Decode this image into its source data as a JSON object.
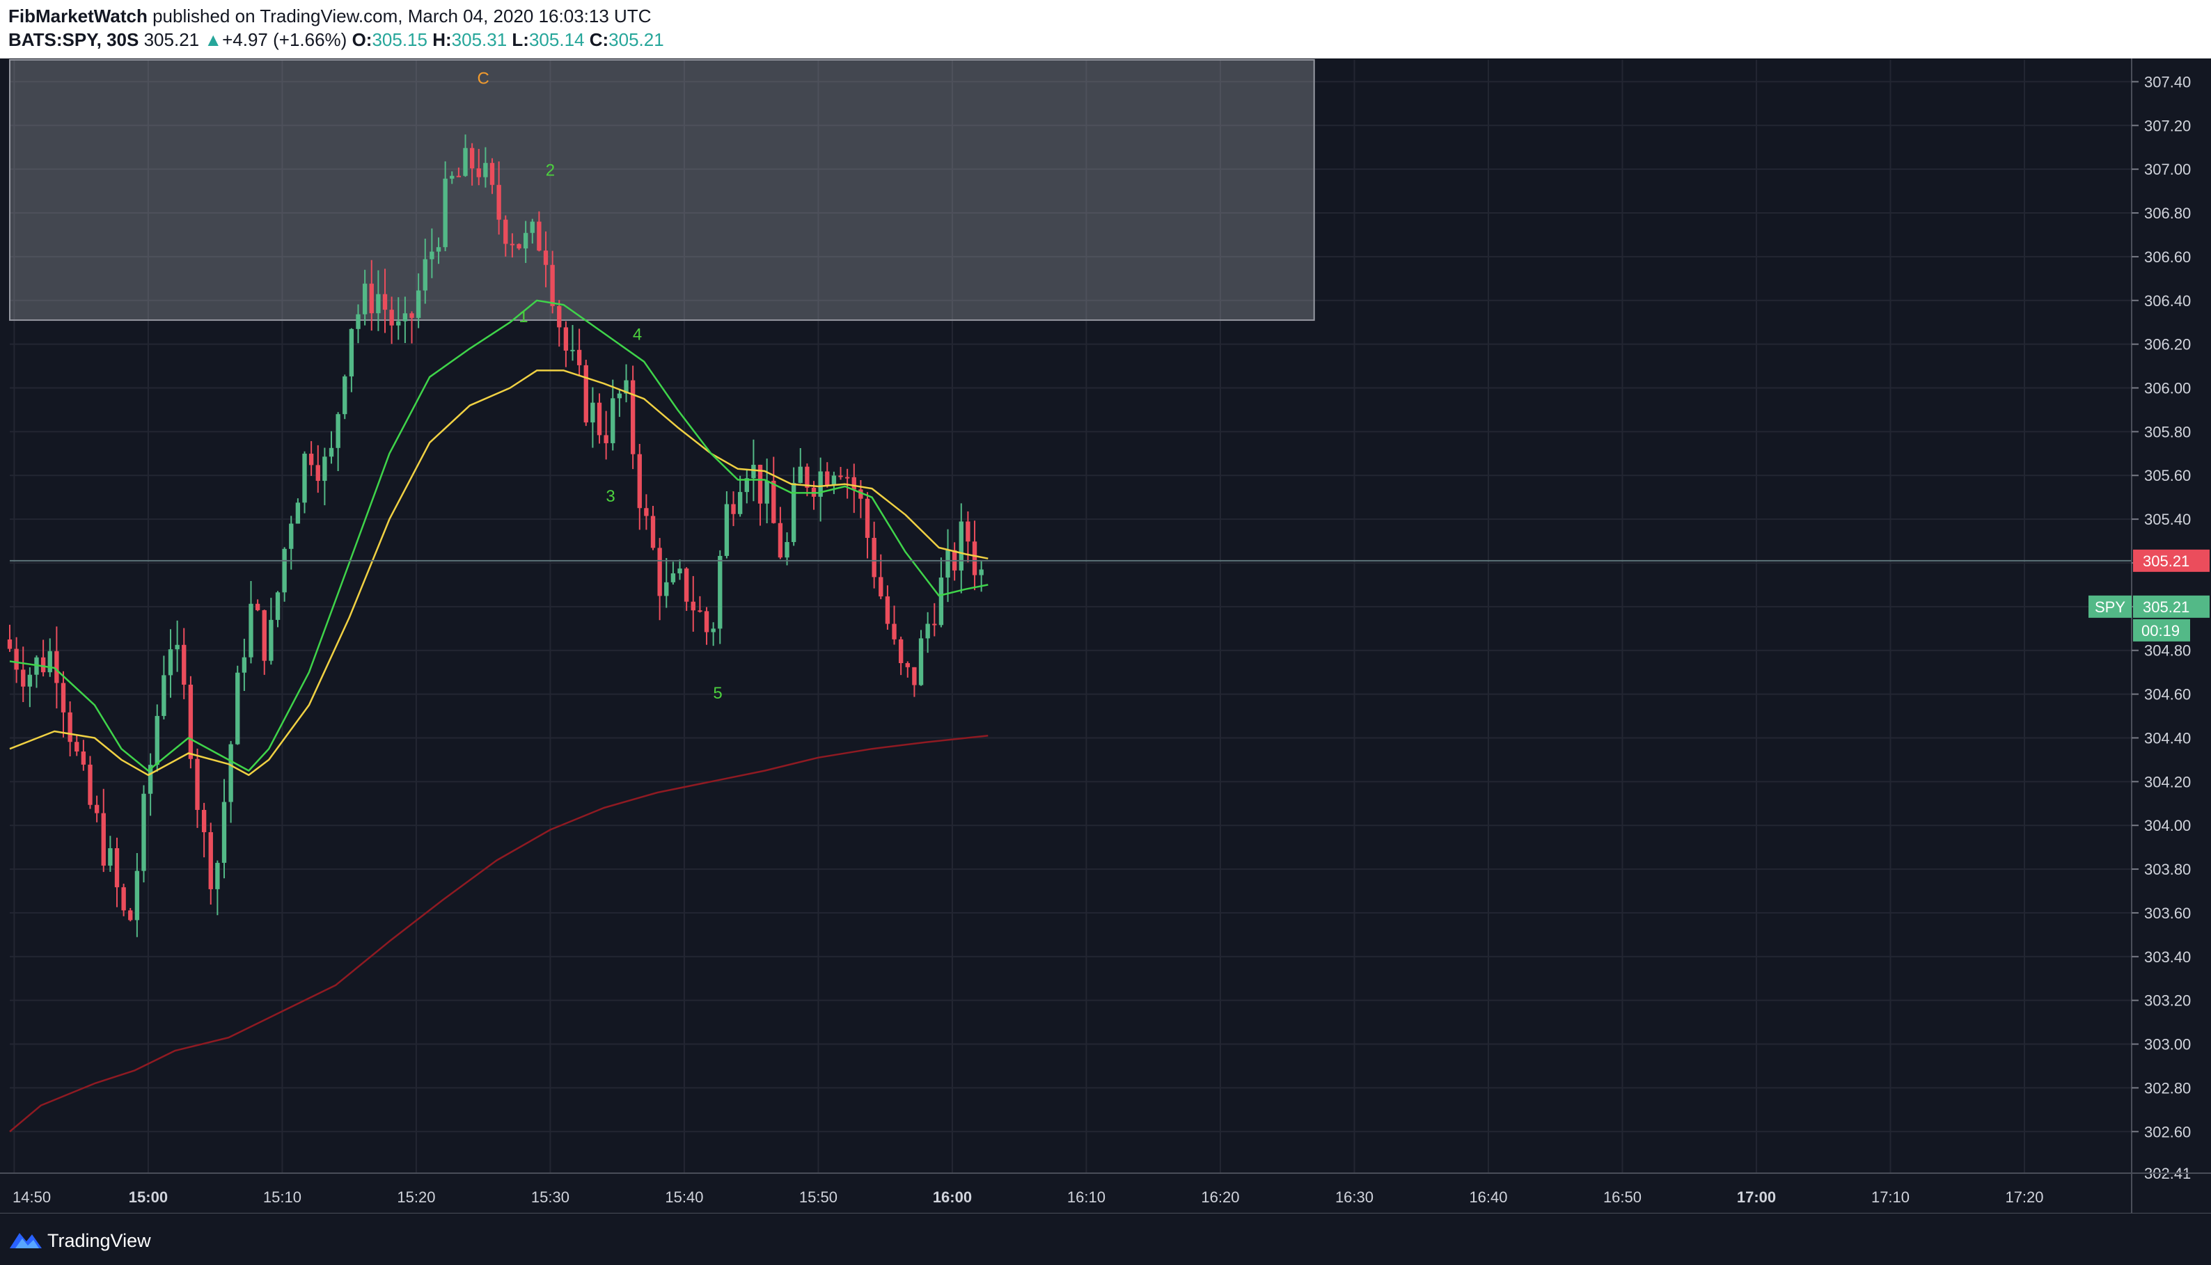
{
  "header": {
    "author": "FibMarketWatch",
    "published_text": " published on TradingView.com, March 04, 2020 16:03:13 UTC",
    "symbol": "BATS:SPY, 30S",
    "last": "305.21",
    "change_arrow": "▲",
    "change": "+4.97 (+1.66%)",
    "open_label": "O:",
    "open": "305.15",
    "high_label": "H:",
    "high": "305.31",
    "low_label": "L:",
    "low": "305.14",
    "close_label": "C:",
    "close": "305.21"
  },
  "footer": {
    "brand": "TradingView"
  },
  "colors": {
    "background": "#131722",
    "grid": "#232632",
    "up": "#53b987",
    "down": "#eb4d5c",
    "ema_fast": "#3fd44a",
    "ema_slow": "#f0d143",
    "ma_long": "#8f1a22",
    "wave_c": "#f29b2e",
    "wave_num": "#4cd13e"
  },
  "chart_data": {
    "type": "candlestick",
    "symbol": "SPY",
    "interval": "30S",
    "y_axis_ticks": [
      "307.40",
      "307.20",
      "307.00",
      "306.80",
      "306.60",
      "306.40",
      "306.20",
      "306.00",
      "305.80",
      "305.60",
      "305.40",
      "305.20",
      "305.00",
      "304.80",
      "304.60",
      "304.40",
      "304.20",
      "304.00",
      "303.80",
      "303.60",
      "303.40",
      "303.20",
      "303.00",
      "302.80",
      "302.60",
      "302.41"
    ],
    "ylim": [
      302.41,
      307.5
    ],
    "x_axis_ticks": [
      "14:50",
      "15:00",
      "15:10",
      "15:20",
      "15:30",
      "15:40",
      "15:50",
      "16:00",
      "16:10",
      "16:20",
      "16:30",
      "16:40",
      "16:50",
      "17:00",
      "17:10",
      "17:20"
    ],
    "x_axis_bold": [
      "15:00",
      "16:00",
      "17:00"
    ],
    "xlim": [
      "14:49:40",
      "17:28:00"
    ],
    "last_price": "305.21",
    "last_price_value": 305.21,
    "current_price_value": 305.0,
    "price_label_series": "SPY",
    "price_label_value": "305.21",
    "countdown": "00:19",
    "zone": {
      "x_start": "14:49:40",
      "x_end": "16:27:00",
      "y_low": 306.31,
      "y_high": 307.5
    },
    "wave_labels": [
      {
        "text": "C",
        "time": "15:25:00",
        "price": 307.39,
        "color": "wave_c"
      },
      {
        "text": "2",
        "time": "15:30:00",
        "price": 306.97,
        "color": "wave_num"
      },
      {
        "text": "1",
        "time": "15:28:00",
        "price": 306.3,
        "color": "wave_num"
      },
      {
        "text": "4",
        "time": "15:36:30",
        "price": 306.22,
        "color": "wave_num"
      },
      {
        "text": "3",
        "time": "15:34:30",
        "price": 305.48,
        "color": "wave_num"
      },
      {
        "text": "5",
        "time": "15:42:30",
        "price": 304.58,
        "color": "wave_num"
      }
    ],
    "anchors": [
      [
        "14:49:40",
        304.85
      ],
      [
        "14:51:30",
        304.7
      ],
      [
        "14:53:30",
        304.8
      ],
      [
        "14:55:30",
        304.2
      ],
      [
        "14:57:30",
        303.85
      ],
      [
        "14:59:00",
        303.5
      ],
      [
        "15:00:30",
        304.2
      ],
      [
        "15:02:00",
        304.9
      ],
      [
        "15:03:30",
        304.5
      ],
      [
        "15:04:30",
        303.95
      ],
      [
        "15:05:30",
        303.75
      ],
      [
        "15:06:30",
        304.3
      ],
      [
        "15:08:00",
        305.0
      ],
      [
        "15:09:30",
        304.8
      ],
      [
        "15:11:00",
        305.4
      ],
      [
        "15:12:30",
        305.75
      ],
      [
        "15:14:00",
        305.6
      ],
      [
        "15:15:30",
        306.3
      ],
      [
        "15:17:30",
        306.45
      ],
      [
        "15:19:30",
        306.2
      ],
      [
        "15:21:30",
        306.6
      ],
      [
        "15:23:00",
        306.92
      ],
      [
        "15:25:00",
        307.05
      ],
      [
        "15:26:30",
        306.8
      ],
      [
        "15:28:30",
        306.65
      ],
      [
        "15:30:00",
        306.7
      ],
      [
        "15:31:30",
        306.2
      ],
      [
        "15:33:00",
        305.95
      ],
      [
        "15:34:30",
        305.8
      ],
      [
        "15:36:00",
        306.0
      ],
      [
        "15:37:30",
        305.4
      ],
      [
        "15:39:00",
        305.05
      ],
      [
        "15:40:30",
        305.1
      ],
      [
        "15:42:30",
        304.85
      ],
      [
        "15:43:30",
        305.4
      ],
      [
        "15:45:00",
        305.7
      ],
      [
        "15:46:30",
        305.5
      ],
      [
        "15:48:00",
        305.2
      ],
      [
        "15:49:00",
        305.6
      ],
      [
        "15:50:30",
        305.6
      ],
      [
        "15:52:00",
        305.7
      ],
      [
        "15:53:30",
        305.5
      ],
      [
        "15:55:00",
        305.1
      ],
      [
        "15:56:30",
        304.7
      ],
      [
        "15:57:30",
        304.65
      ],
      [
        "15:59:00",
        305.0
      ],
      [
        "16:00:30",
        305.2
      ],
      [
        "16:01:30",
        305.35
      ],
      [
        "16:02:30",
        305.15
      ]
    ],
    "ema_fast": [
      [
        "14:49:40",
        304.75
      ],
      [
        "14:53:00",
        304.72
      ],
      [
        "14:56:00",
        304.55
      ],
      [
        "14:58:00",
        304.35
      ],
      [
        "15:00:00",
        304.25
      ],
      [
        "15:03:00",
        304.4
      ],
      [
        "15:06:00",
        304.3
      ],
      [
        "15:07:30",
        304.25
      ],
      [
        "15:09:00",
        304.35
      ],
      [
        "15:12:00",
        304.7
      ],
      [
        "15:15:00",
        305.2
      ],
      [
        "15:18:00",
        305.7
      ],
      [
        "15:21:00",
        306.05
      ],
      [
        "15:24:00",
        306.18
      ],
      [
        "15:27:00",
        306.3
      ],
      [
        "15:29:00",
        306.4
      ],
      [
        "15:31:00",
        306.38
      ],
      [
        "15:34:00",
        306.25
      ],
      [
        "15:37:00",
        306.12
      ],
      [
        "15:39:30",
        305.9
      ],
      [
        "15:42:00",
        305.7
      ],
      [
        "15:44:00",
        305.58
      ],
      [
        "15:46:00",
        305.58
      ],
      [
        "15:48:00",
        305.52
      ],
      [
        "15:50:00",
        305.52
      ],
      [
        "15:52:00",
        305.55
      ],
      [
        "15:54:00",
        305.5
      ],
      [
        "15:56:30",
        305.25
      ],
      [
        "15:59:00",
        305.05
      ],
      [
        "16:01:00",
        305.08
      ],
      [
        "16:02:40",
        305.1
      ]
    ],
    "ema_slow": [
      [
        "14:49:40",
        304.35
      ],
      [
        "14:53:00",
        304.43
      ],
      [
        "14:56:00",
        304.4
      ],
      [
        "14:58:00",
        304.3
      ],
      [
        "15:00:00",
        304.23
      ],
      [
        "15:03:00",
        304.33
      ],
      [
        "15:06:00",
        304.28
      ],
      [
        "15:07:30",
        304.23
      ],
      [
        "15:09:00",
        304.3
      ],
      [
        "15:12:00",
        304.55
      ],
      [
        "15:15:00",
        304.95
      ],
      [
        "15:18:00",
        305.4
      ],
      [
        "15:21:00",
        305.75
      ],
      [
        "15:24:00",
        305.92
      ],
      [
        "15:27:00",
        306.0
      ],
      [
        "15:29:00",
        306.08
      ],
      [
        "15:31:00",
        306.08
      ],
      [
        "15:34:00",
        306.02
      ],
      [
        "15:37:00",
        305.95
      ],
      [
        "15:39:30",
        305.82
      ],
      [
        "15:42:00",
        305.7
      ],
      [
        "15:44:00",
        305.63
      ],
      [
        "15:46:00",
        305.62
      ],
      [
        "15:48:00",
        305.56
      ],
      [
        "15:50:00",
        305.55
      ],
      [
        "15:52:00",
        305.56
      ],
      [
        "15:54:00",
        305.54
      ],
      [
        "15:56:30",
        305.42
      ],
      [
        "15:59:00",
        305.27
      ],
      [
        "16:01:00",
        305.24
      ],
      [
        "16:02:40",
        305.22
      ]
    ],
    "ma_long": [
      [
        "14:49:40",
        302.6
      ],
      [
        "14:52:00",
        302.72
      ],
      [
        "14:56:00",
        302.82
      ],
      [
        "14:59:00",
        302.88
      ],
      [
        "15:02:00",
        302.97
      ],
      [
        "15:06:00",
        303.03
      ],
      [
        "15:10:00",
        303.15
      ],
      [
        "15:14:00",
        303.27
      ],
      [
        "15:18:00",
        303.47
      ],
      [
        "15:22:00",
        303.66
      ],
      [
        "15:26:00",
        303.84
      ],
      [
        "15:30:00",
        303.98
      ],
      [
        "15:34:00",
        304.08
      ],
      [
        "15:38:00",
        304.15
      ],
      [
        "15:42:00",
        304.2
      ],
      [
        "15:46:00",
        304.25
      ],
      [
        "15:50:00",
        304.31
      ],
      [
        "15:54:00",
        304.35
      ],
      [
        "15:58:00",
        304.38
      ],
      [
        "16:02:40",
        304.41
      ]
    ]
  }
}
